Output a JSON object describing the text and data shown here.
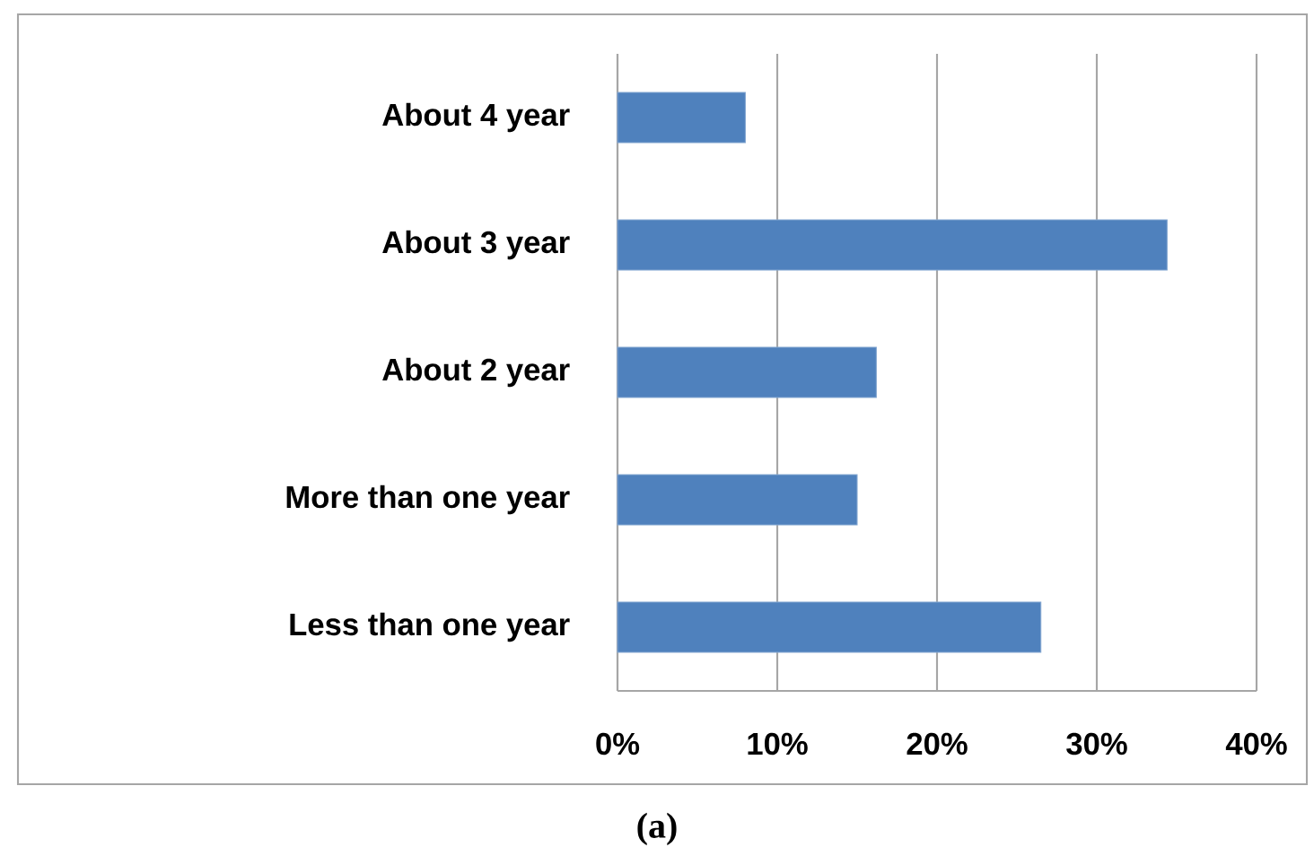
{
  "chart_data": {
    "type": "bar",
    "orientation": "horizontal",
    "categories": [
      "About 4 year",
      "About 3 year",
      "About 2 year",
      "More than one year",
      "Less than one year"
    ],
    "values": [
      8,
      34.4,
      16.2,
      15,
      26.5
    ],
    "color": "#4f81bd",
    "xlim": [
      0,
      40
    ],
    "xticks": [
      {
        "value": 0,
        "label": "0%"
      },
      {
        "value": 10,
        "label": "10%"
      },
      {
        "value": 20,
        "label": "20%"
      },
      {
        "value": 30,
        "label": "30%"
      },
      {
        "value": 40,
        "label": "40%"
      }
    ],
    "grid": "x",
    "annotations": [
      "(a)"
    ]
  }
}
